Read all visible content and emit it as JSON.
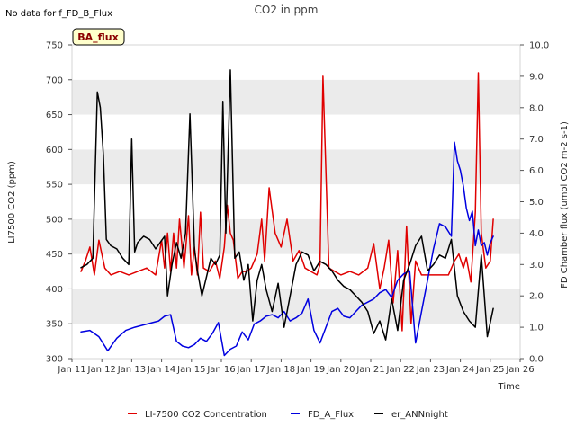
{
  "header": {
    "note": "No data for f_FD_B_Flux",
    "title": "CO2 in ppm"
  },
  "badge": {
    "label": "BA_flux",
    "fill": "#ffffcc",
    "text_color": "#8b0000"
  },
  "chart_data": {
    "type": "line",
    "title": "CO2 in ppm",
    "xlabel": "Time",
    "ylabel": "LI7500 CO2 (ppm)",
    "y2label": "FD Chamber flux (umol CO2 m-2 s-1)",
    "xlim": [
      11,
      26
    ],
    "ylim": [
      300,
      750
    ],
    "y2lim": [
      0.0,
      10.0
    ],
    "x_ticks": [
      11,
      12,
      13,
      14,
      15,
      16,
      17,
      18,
      19,
      20,
      21,
      22,
      23,
      24,
      25,
      26
    ],
    "x_tick_labels": [
      "Jan 11",
      "Jan 12",
      "Jan 13",
      "Jan 14",
      "Jan 15",
      "Jan 16",
      "Jan 17",
      "Jan 18",
      "Jan 19",
      "Jan 20",
      "Jan 21",
      "Jan 22",
      "Jan 23",
      "Jan 24",
      "Jan 25",
      "Jan 26"
    ],
    "y_ticks": [
      300,
      350,
      400,
      450,
      500,
      550,
      600,
      650,
      700,
      750
    ],
    "y2_ticks": [
      0.0,
      1.0,
      2.0,
      3.0,
      4.0,
      5.0,
      6.0,
      7.0,
      8.0,
      9.0,
      10.0
    ],
    "y2_tick_labels": [
      "0.0",
      "1.0",
      "2.0",
      "3.0",
      "4.0",
      "5.0",
      "6.0",
      "7.0",
      "8.0",
      "9.0",
      "10.0"
    ],
    "legend_position": "bottom",
    "grid": "horizontal bands",
    "colors": {
      "band": "#ebebeb",
      "plot_bg": "#ffffff"
    },
    "series": [
      {
        "name": "LI-7500 CO2 Concentration",
        "color": "#e00000",
        "axis": "left",
        "x": [
          11.3,
          11.45,
          11.6,
          11.75,
          11.9,
          12.1,
          12.3,
          12.6,
          12.9,
          13.2,
          13.5,
          13.8,
          14.0,
          14.1,
          14.2,
          14.3,
          14.4,
          14.5,
          14.6,
          14.75,
          14.9,
          15.0,
          15.1,
          15.2,
          15.3,
          15.4,
          15.6,
          15.8,
          15.95,
          16.1,
          16.2,
          16.3,
          16.4,
          16.55,
          16.7,
          16.85,
          17.0,
          17.2,
          17.35,
          17.45,
          17.6,
          17.8,
          18.0,
          18.2,
          18.4,
          18.6,
          18.8,
          19.0,
          19.2,
          19.3,
          19.4,
          19.6,
          19.8,
          20.0,
          20.3,
          20.6,
          20.9,
          21.1,
          21.3,
          21.45,
          21.6,
          21.75,
          21.9,
          22.05,
          22.2,
          22.35,
          22.5,
          22.7,
          23.0,
          23.3,
          23.6,
          23.8,
          23.95,
          24.1,
          24.2,
          24.35,
          24.5,
          24.6,
          24.7,
          24.85,
          25.0,
          25.1
        ],
        "y": [
          425,
          440,
          460,
          420,
          470,
          430,
          420,
          425,
          420,
          425,
          430,
          420,
          470,
          430,
          480,
          425,
          480,
          430,
          500,
          430,
          505,
          420,
          460,
          420,
          510,
          430,
          425,
          440,
          415,
          460,
          520,
          480,
          470,
          415,
          425,
          425,
          430,
          450,
          500,
          440,
          545,
          480,
          460,
          500,
          440,
          455,
          430,
          425,
          420,
          435,
          705,
          430,
          425,
          420,
          425,
          420,
          430,
          465,
          400,
          430,
          470,
          380,
          455,
          340,
          490,
          350,
          440,
          420,
          420,
          420,
          420,
          440,
          450,
          430,
          445,
          410,
          510,
          710,
          480,
          430,
          440,
          500
        ]
      },
      {
        "name": "FD_A_Flux",
        "color": "#0000e0",
        "axis": "right",
        "x": [
          11.3,
          11.6,
          11.9,
          12.2,
          12.5,
          12.8,
          13.1,
          13.5,
          13.9,
          14.1,
          14.3,
          14.5,
          14.7,
          14.9,
          15.1,
          15.3,
          15.5,
          15.7,
          15.9,
          16.1,
          16.3,
          16.5,
          16.7,
          16.9,
          17.1,
          17.3,
          17.5,
          17.7,
          17.9,
          18.1,
          18.3,
          18.5,
          18.7,
          18.9,
          19.1,
          19.3,
          19.5,
          19.7,
          19.9,
          20.1,
          20.3,
          20.5,
          20.7,
          20.9,
          21.1,
          21.3,
          21.5,
          21.7,
          21.9,
          22.1,
          22.3,
          22.5,
          22.7,
          22.9,
          23.1,
          23.3,
          23.5,
          23.7,
          23.8,
          23.9,
          24.0,
          24.1,
          24.2,
          24.3,
          24.4,
          24.5,
          24.6,
          24.7,
          24.8,
          24.9,
          25.0,
          25.1
        ],
        "y": [
          0.85,
          0.9,
          0.7,
          0.25,
          0.65,
          0.9,
          1.0,
          1.1,
          1.2,
          1.35,
          1.4,
          0.55,
          0.4,
          0.35,
          0.45,
          0.65,
          0.55,
          0.8,
          1.15,
          0.1,
          0.3,
          0.4,
          0.85,
          0.6,
          1.1,
          1.2,
          1.35,
          1.4,
          1.3,
          1.5,
          1.2,
          1.3,
          1.45,
          1.9,
          0.9,
          0.5,
          1.0,
          1.5,
          1.6,
          1.35,
          1.3,
          1.5,
          1.7,
          1.8,
          1.9,
          2.1,
          2.2,
          1.95,
          2.5,
          2.7,
          2.8,
          0.5,
          1.5,
          2.5,
          3.5,
          4.3,
          4.2,
          3.9,
          6.9,
          6.3,
          6.0,
          5.5,
          4.8,
          4.4,
          4.7,
          3.6,
          4.1,
          3.6,
          3.7,
          3.3,
          3.7,
          3.9
        ]
      },
      {
        "name": "er_ANNnight",
        "color": "#000000",
        "axis": "right",
        "x": [
          11.3,
          11.5,
          11.7,
          11.85,
          11.95,
          12.05,
          12.15,
          12.3,
          12.5,
          12.7,
          12.9,
          13.0,
          13.1,
          13.2,
          13.4,
          13.6,
          13.8,
          13.95,
          14.1,
          14.2,
          14.35,
          14.5,
          14.65,
          14.8,
          14.95,
          15.1,
          15.2,
          15.35,
          15.5,
          15.65,
          15.8,
          15.95,
          16.05,
          16.15,
          16.3,
          16.45,
          16.6,
          16.75,
          16.9,
          17.05,
          17.2,
          17.35,
          17.5,
          17.7,
          17.9,
          18.1,
          18.3,
          18.5,
          18.7,
          18.9,
          19.1,
          19.3,
          19.5,
          19.7,
          19.9,
          20.1,
          20.3,
          20.5,
          20.7,
          20.9,
          21.1,
          21.3,
          21.5,
          21.7,
          21.9,
          22.1,
          22.3,
          22.5,
          22.7,
          22.9,
          23.1,
          23.3,
          23.5,
          23.7,
          23.9,
          24.1,
          24.3,
          24.5,
          24.7,
          24.9,
          25.1
        ],
        "y": [
          2.9,
          3.0,
          3.2,
          8.5,
          8.0,
          6.5,
          3.8,
          3.6,
          3.5,
          3.2,
          3.0,
          7.0,
          3.4,
          3.7,
          3.9,
          3.8,
          3.5,
          3.7,
          3.9,
          2.0,
          3.0,
          3.7,
          3.2,
          4.0,
          7.8,
          3.5,
          2.8,
          2.0,
          2.6,
          3.2,
          3.0,
          3.3,
          8.2,
          4.0,
          9.2,
          3.2,
          3.4,
          2.5,
          3.0,
          1.2,
          2.5,
          3.0,
          2.2,
          1.5,
          2.4,
          1.0,
          2.0,
          3.0,
          3.4,
          3.3,
          2.8,
          3.1,
          3.0,
          2.8,
          2.5,
          2.3,
          2.2,
          2.0,
          1.8,
          1.5,
          0.8,
          1.2,
          0.6,
          1.9,
          0.9,
          2.5,
          3.0,
          3.6,
          3.9,
          2.8,
          3.0,
          3.3,
          3.2,
          3.8,
          2.0,
          1.5,
          1.2,
          1.0,
          3.3,
          0.7,
          1.6
        ]
      }
    ]
  }
}
